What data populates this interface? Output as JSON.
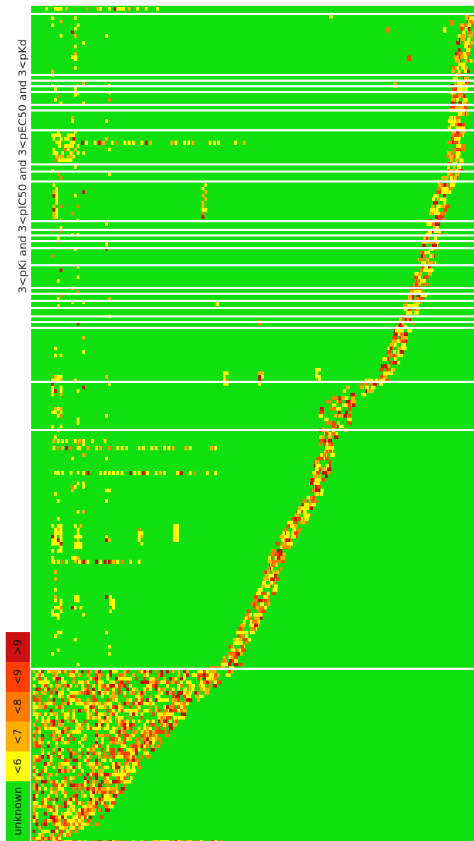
{
  "axis_title": "3<pKi and 3<pIC50 and 3<pEC50 and 3<pKd",
  "colors": {
    "unknown": "#10e010",
    "lt6": "#ffff00",
    "lt7": "#ffb000",
    "lt8": "#ff7a00",
    "lt9": "#ff4000",
    "gt9": "#cc1010",
    "separator": "#ffffff"
  },
  "legend": [
    {
      "label": ">9",
      "color_key": "gt9"
    },
    {
      "label": "<9",
      "color_key": "lt9"
    },
    {
      "label": "<8",
      "color_key": "lt8"
    },
    {
      "label": "<7",
      "color_key": "lt7"
    },
    {
      "label": "<6",
      "color_key": "lt6"
    },
    {
      "label": "unknown",
      "color_key": "unknown"
    }
  ],
  "chart_data": {
    "type": "heatmap",
    "title": "3<pKi and 3<pIC50 and 3<pEC50 and 3<pKd",
    "color_scale": [
      "unknown",
      "<6",
      "<7",
      "<8",
      "<9",
      ">9"
    ],
    "dominant_category": "unknown",
    "layout_note": "rows are targets, columns are compounds; activity cells form a diagonal staircase from bottom-left to top-right"
  }
}
